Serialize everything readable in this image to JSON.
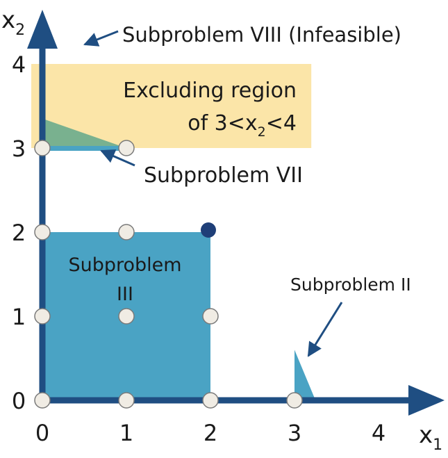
{
  "chart_data": {
    "type": "diagram",
    "axes": {
      "x_label": "x",
      "x_subscript": "1",
      "y_label": "x",
      "y_subscript": "2",
      "x_ticks": [
        "0",
        "1",
        "2",
        "3",
        "4"
      ],
      "y_ticks": [
        "0",
        "1",
        "2",
        "3",
        "4"
      ]
    },
    "labels": {
      "sub_viii": "Subproblem VIII (Infeasible)",
      "excluding_line1": "Excluding region",
      "excluding_line2_pre": "of 3<x",
      "excluding_line2_sub": "2",
      "excluding_line2_post": "<4",
      "sub_vii": "Subproblem VII",
      "sub_iii_line1": "Subproblem",
      "sub_iii_line2": "III",
      "sub_ii": "Subproblem II"
    },
    "regions": {
      "excluded_band": {
        "x": [
          0,
          3.2
        ],
        "y": [
          3,
          4
        ]
      },
      "subproblem_iii": {
        "x": [
          0,
          2
        ],
        "y": [
          0,
          2
        ]
      },
      "subproblem_vii": [
        [
          0,
          3
        ],
        [
          0,
          3.35
        ],
        [
          1,
          3
        ]
      ],
      "subproblem_ii": [
        [
          3,
          0
        ],
        [
          3,
          0.6
        ],
        [
          3.25,
          0
        ]
      ]
    },
    "integer_points": [
      [
        0,
        0
      ],
      [
        1,
        0
      ],
      [
        2,
        0
      ],
      [
        3,
        0
      ],
      [
        0,
        1
      ],
      [
        1,
        1
      ],
      [
        2,
        1
      ],
      [
        0,
        2
      ],
      [
        1,
        2
      ],
      [
        0,
        3
      ],
      [
        1,
        3
      ]
    ],
    "optimal_point": [
      2,
      2
    ],
    "colors": {
      "axis": "#1f4e82",
      "region": "#4aa3c4",
      "region_green": "#6aab8c",
      "band": "#fbe5a8",
      "point_fill": "#f0ece4",
      "point_stroke": "#7a7a7a",
      "optimal": "#1f3f78"
    }
  }
}
